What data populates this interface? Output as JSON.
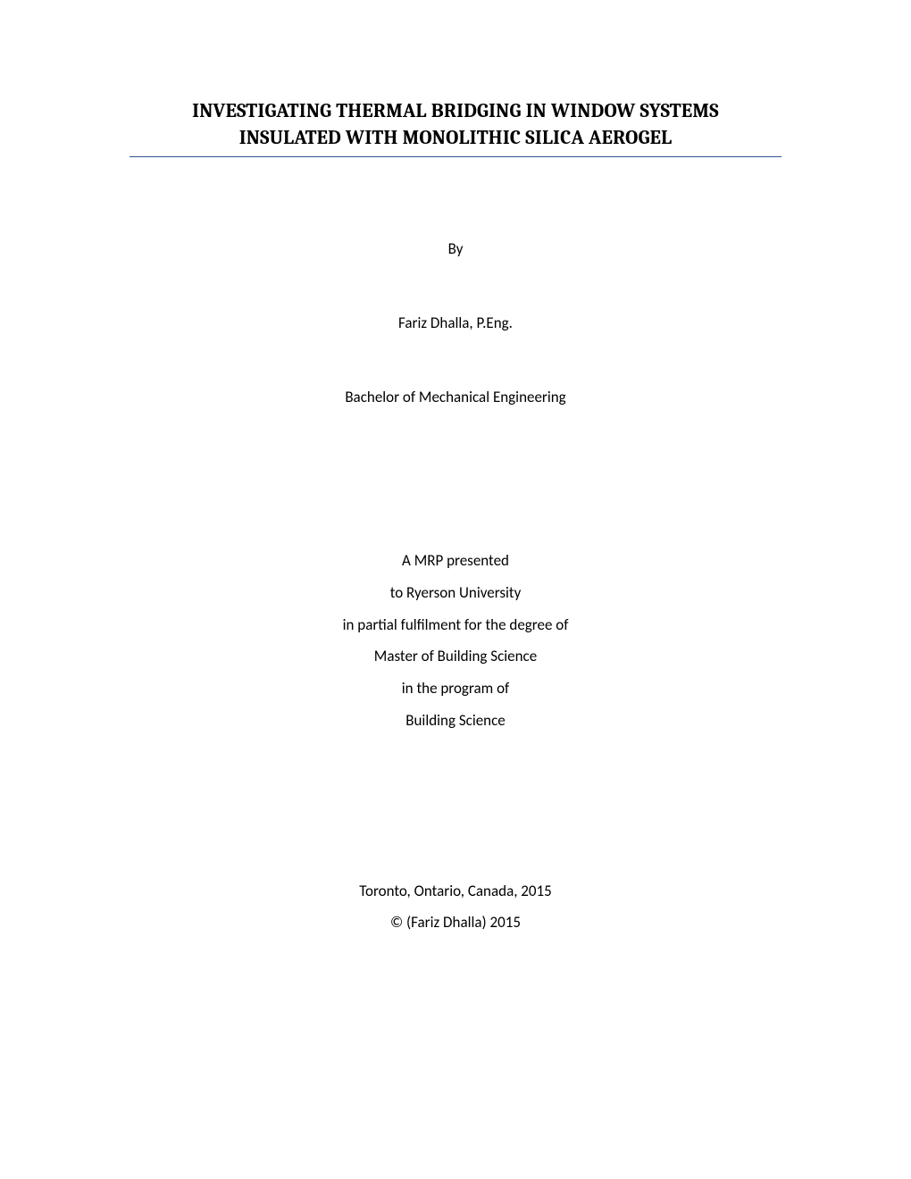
{
  "title": {
    "line1": "INVESTIGATING THERMAL BRIDGING IN WINDOW SYSTEMS",
    "line2": "INSULATED WITH MONOLITHIC SILICA AEROGEL"
  },
  "by_label": "By",
  "author": "Fariz Dhalla, P.Eng.",
  "prior_degree": "Bachelor of Mechanical Engineering",
  "presentation": {
    "line1": "A MRP presented",
    "line2": "to Ryerson University",
    "line3": "in partial fulfilment for the degree of",
    "line4": "Master of Building Science",
    "line5": "in the program of",
    "line6": "Building Science"
  },
  "footer": {
    "location": "Toronto, Ontario, Canada, 2015",
    "copyright": "© (Fariz Dhalla) 2015"
  },
  "colors": {
    "rule": "#2e5496",
    "text": "#000000",
    "background": "#ffffff"
  }
}
